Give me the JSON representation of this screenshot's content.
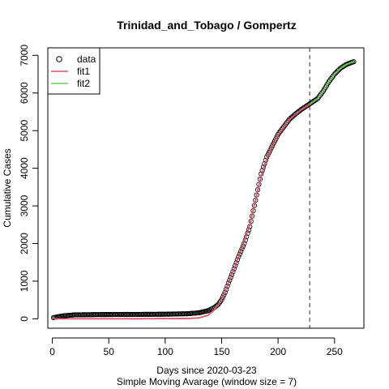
{
  "chart_data": {
    "type": "line",
    "title": "Trinidad_and_Tobago / Gompertz",
    "xlabel": "Days since 2020-03-23",
    "subtitle": "Simple Moving Avarage (window size = 7)",
    "ylabel": "Cumulative Cases",
    "xlim": [
      -4,
      276
    ],
    "ylim": [
      -250,
      7200
    ],
    "xticks": [
      0,
      50,
      100,
      150,
      200,
      250
    ],
    "yticks": [
      0,
      1000,
      2000,
      3000,
      4000,
      5000,
      6000,
      7000
    ],
    "vline_x": 228,
    "legend": {
      "position": "top-left",
      "entries": [
        {
          "label": "data",
          "symbol": "circle",
          "color": "#000000"
        },
        {
          "label": "fit1",
          "symbol": "line",
          "color": "#DF536B"
        },
        {
          "label": "fit2",
          "symbol": "line",
          "color": "#61D04F"
        }
      ]
    },
    "data_series": {
      "name": "data",
      "x_start": 1,
      "x_end": 267,
      "anchors": [
        [
          1,
          30
        ],
        [
          5,
          55
        ],
        [
          10,
          80
        ],
        [
          20,
          105
        ],
        [
          40,
          112
        ],
        [
          60,
          115
        ],
        [
          80,
          118
        ],
        [
          100,
          122
        ],
        [
          120,
          135
        ],
        [
          130,
          160
        ],
        [
          138,
          215
        ],
        [
          143,
          290
        ],
        [
          147,
          380
        ],
        [
          150,
          510
        ],
        [
          153,
          700
        ],
        [
          156,
          950
        ],
        [
          160,
          1250
        ],
        [
          165,
          1650
        ],
        [
          170,
          2000
        ],
        [
          175,
          2450
        ],
        [
          180,
          3150
        ],
        [
          185,
          3850
        ],
        [
          190,
          4300
        ],
        [
          195,
          4600
        ],
        [
          200,
          4900
        ],
        [
          205,
          5100
        ],
        [
          210,
          5300
        ],
        [
          215,
          5430
        ],
        [
          220,
          5550
        ],
        [
          225,
          5650
        ],
        [
          230,
          5750
        ],
        [
          235,
          5850
        ],
        [
          240,
          6050
        ],
        [
          245,
          6300
        ],
        [
          250,
          6500
        ],
        [
          255,
          6650
        ],
        [
          260,
          6750
        ],
        [
          265,
          6810
        ],
        [
          267,
          6830
        ]
      ]
    },
    "fit1": {
      "name": "fit1",
      "color": "#DF536B",
      "anchors": [
        [
          1,
          0
        ],
        [
          40,
          0
        ],
        [
          80,
          2
        ],
        [
          120,
          8
        ],
        [
          130,
          25
        ],
        [
          138,
          95
        ],
        [
          143,
          220
        ],
        [
          147,
          370
        ],
        [
          150,
          520
        ],
        [
          153,
          720
        ],
        [
          156,
          960
        ],
        [
          160,
          1250
        ],
        [
          165,
          1650
        ],
        [
          170,
          2050
        ],
        [
          175,
          2500
        ],
        [
          180,
          3150
        ],
        [
          185,
          3800
        ],
        [
          190,
          4250
        ],
        [
          195,
          4580
        ],
        [
          200,
          4880
        ],
        [
          205,
          5100
        ],
        [
          210,
          5290
        ],
        [
          215,
          5420
        ],
        [
          220,
          5540
        ],
        [
          225,
          5640
        ],
        [
          228,
          5690
        ]
      ]
    },
    "fit2": {
      "name": "fit2",
      "color": "#61D04F",
      "anchors": [
        [
          228,
          5690
        ],
        [
          230,
          5740
        ],
        [
          235,
          5850
        ],
        [
          240,
          6050
        ],
        [
          245,
          6300
        ],
        [
          250,
          6500
        ],
        [
          255,
          6650
        ],
        [
          260,
          6750
        ],
        [
          265,
          6810
        ],
        [
          267,
          6830
        ]
      ]
    }
  }
}
